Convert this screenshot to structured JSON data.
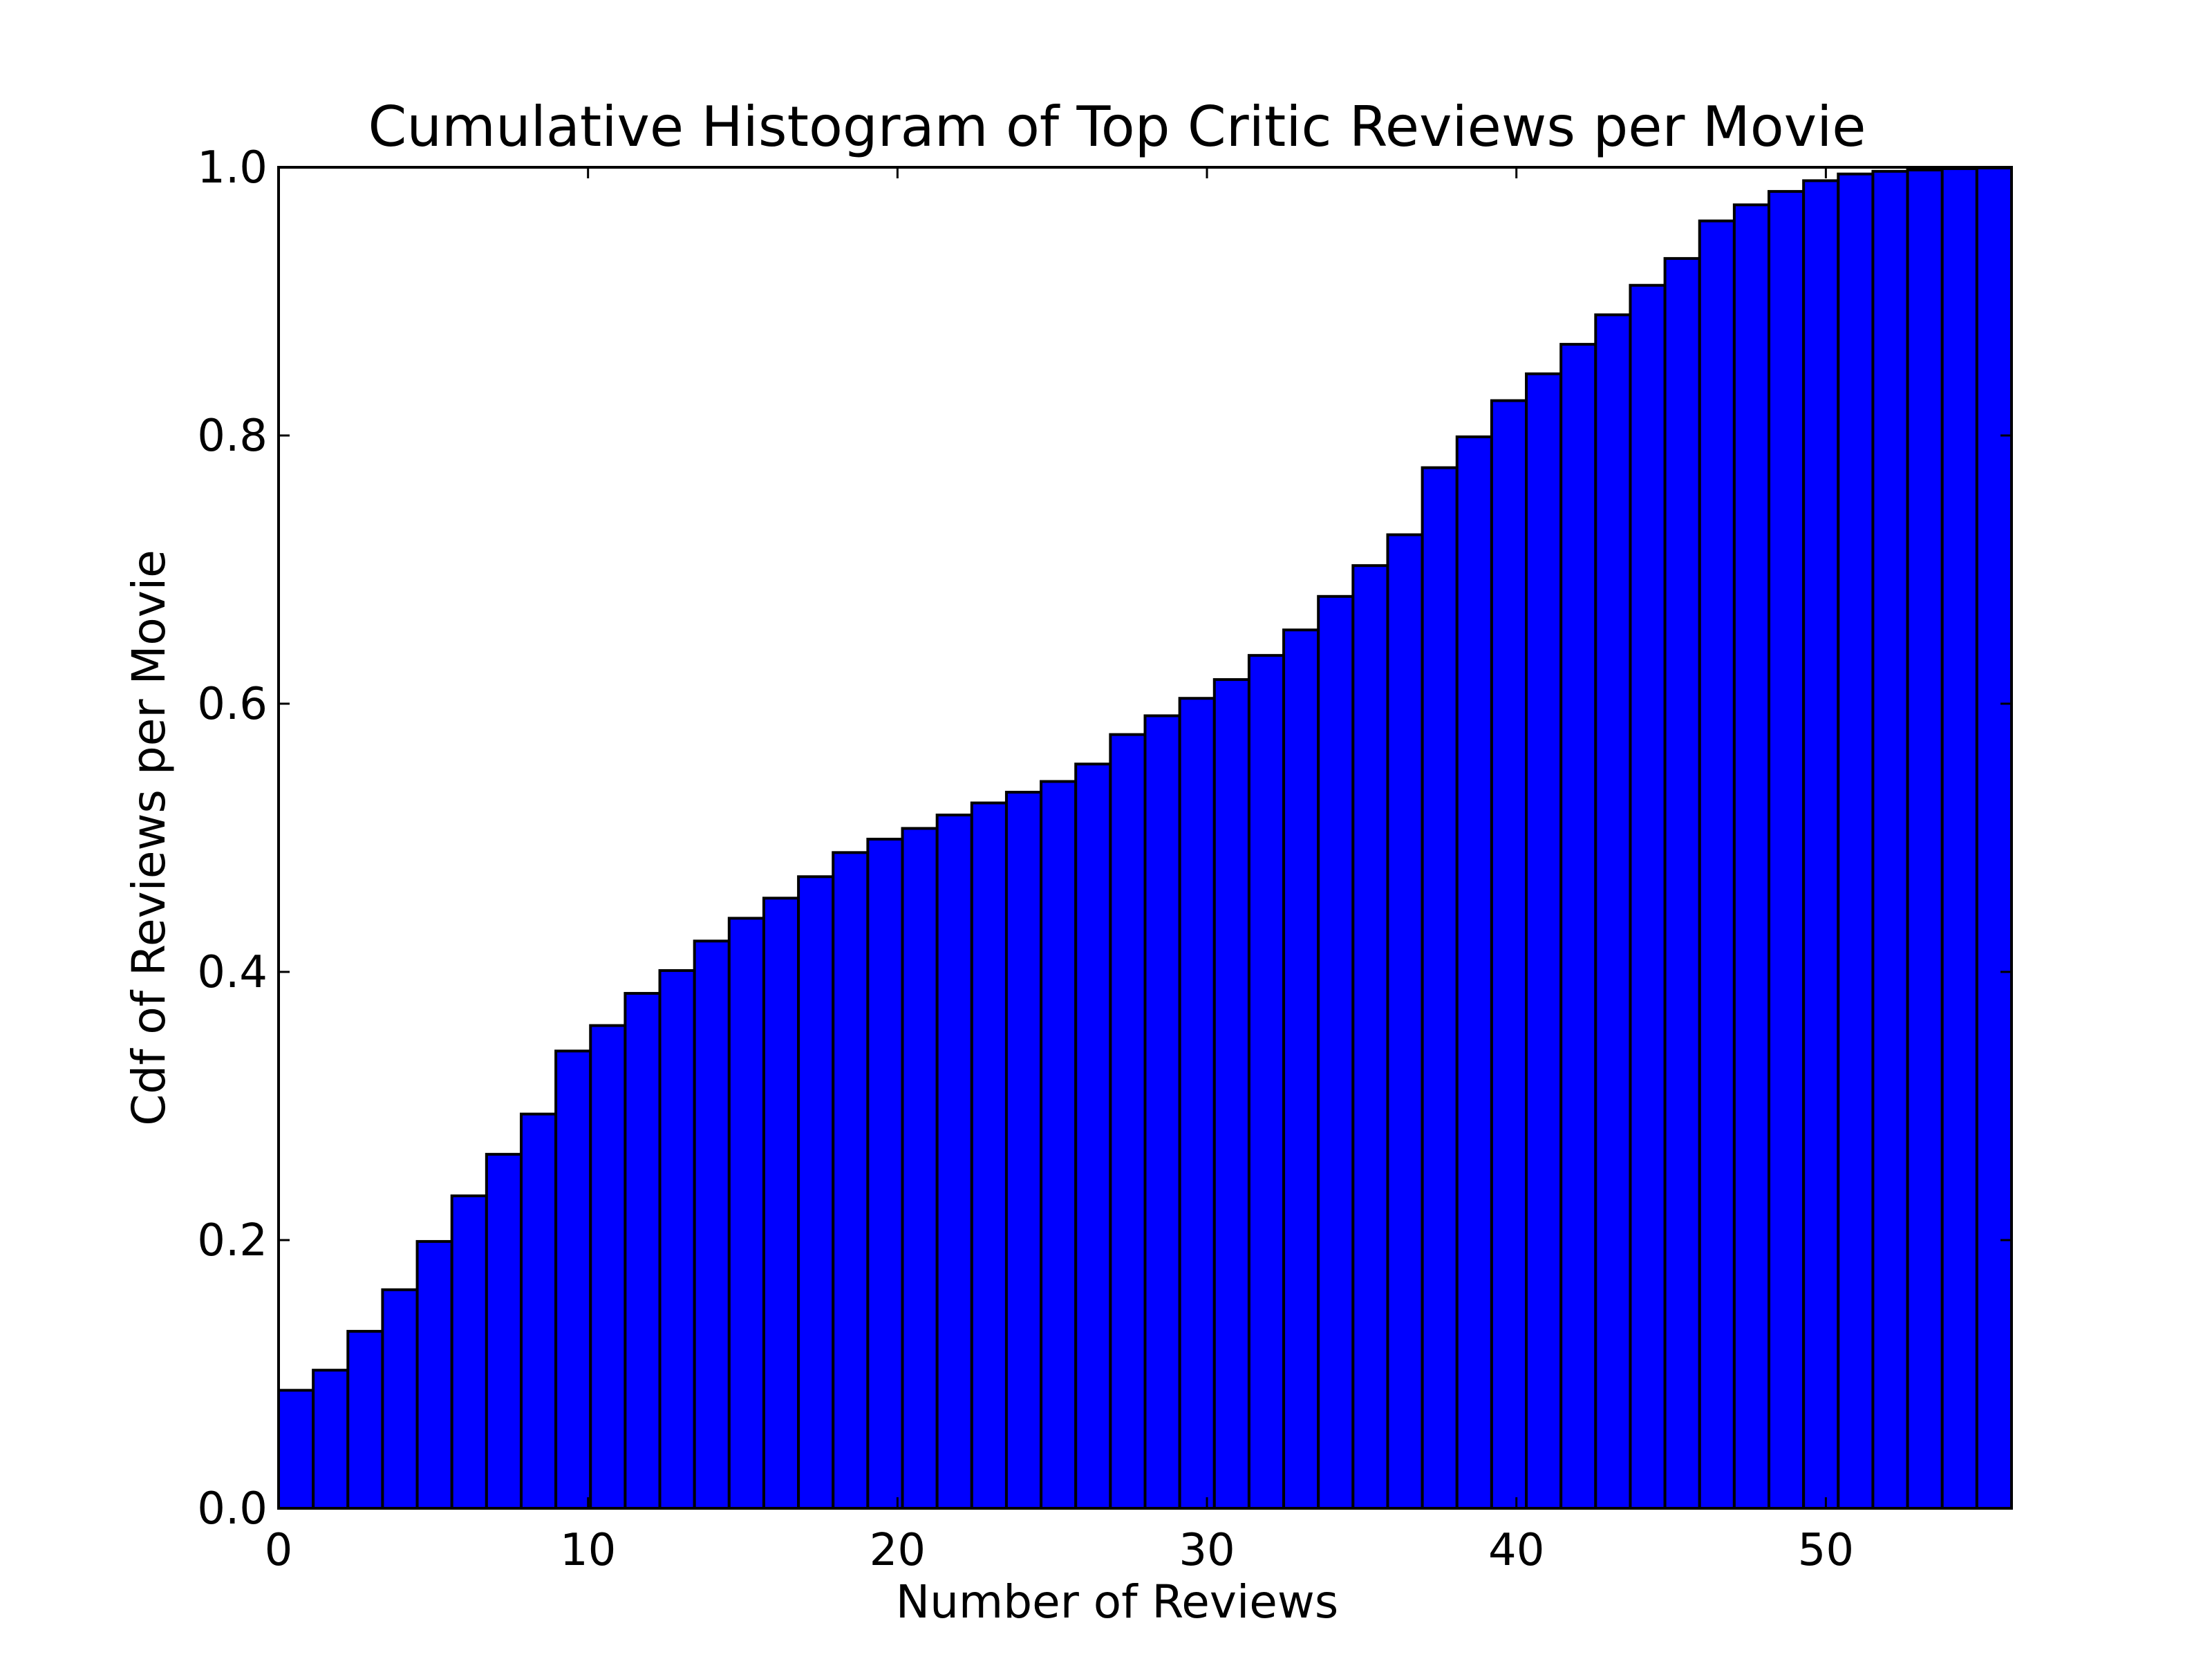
{
  "chart_data": {
    "type": "bar",
    "title": "Cumulative Histogram of Top Critic Reviews per Movie",
    "xlabel": "Number of Reviews",
    "ylabel": "Cdf of Reviews per Movie",
    "xlim": [
      0,
      56
    ],
    "ylim": [
      0.0,
      1.0
    ],
    "xticks": [
      0,
      10,
      20,
      30,
      40,
      50
    ],
    "xtick_labels": [
      "0",
      "10",
      "20",
      "30",
      "40",
      "50"
    ],
    "yticks": [
      0.0,
      0.2,
      0.4,
      0.6,
      0.8,
      1.0
    ],
    "ytick_labels": [
      "0.0",
      "0.2",
      "0.4",
      "0.6",
      "0.8",
      "1.0"
    ],
    "grid": false,
    "bar_color": "#0000ff",
    "edge_color": "#000000",
    "bin_start": 0,
    "bin_width": 1.12,
    "values": [
      0.088,
      0.103,
      0.132,
      0.163,
      0.199,
      0.233,
      0.264,
      0.294,
      0.341,
      0.36,
      0.384,
      0.401,
      0.423,
      0.44,
      0.455,
      0.471,
      0.489,
      0.499,
      0.507,
      0.517,
      0.526,
      0.534,
      0.542,
      0.555,
      0.577,
      0.591,
      0.604,
      0.618,
      0.636,
      0.655,
      0.68,
      0.703,
      0.726,
      0.776,
      0.799,
      0.826,
      0.846,
      0.868,
      0.89,
      0.912,
      0.932,
      0.96,
      0.972,
      0.982,
      0.99,
      0.995,
      0.997,
      0.998,
      0.999,
      0.9995
    ]
  }
}
